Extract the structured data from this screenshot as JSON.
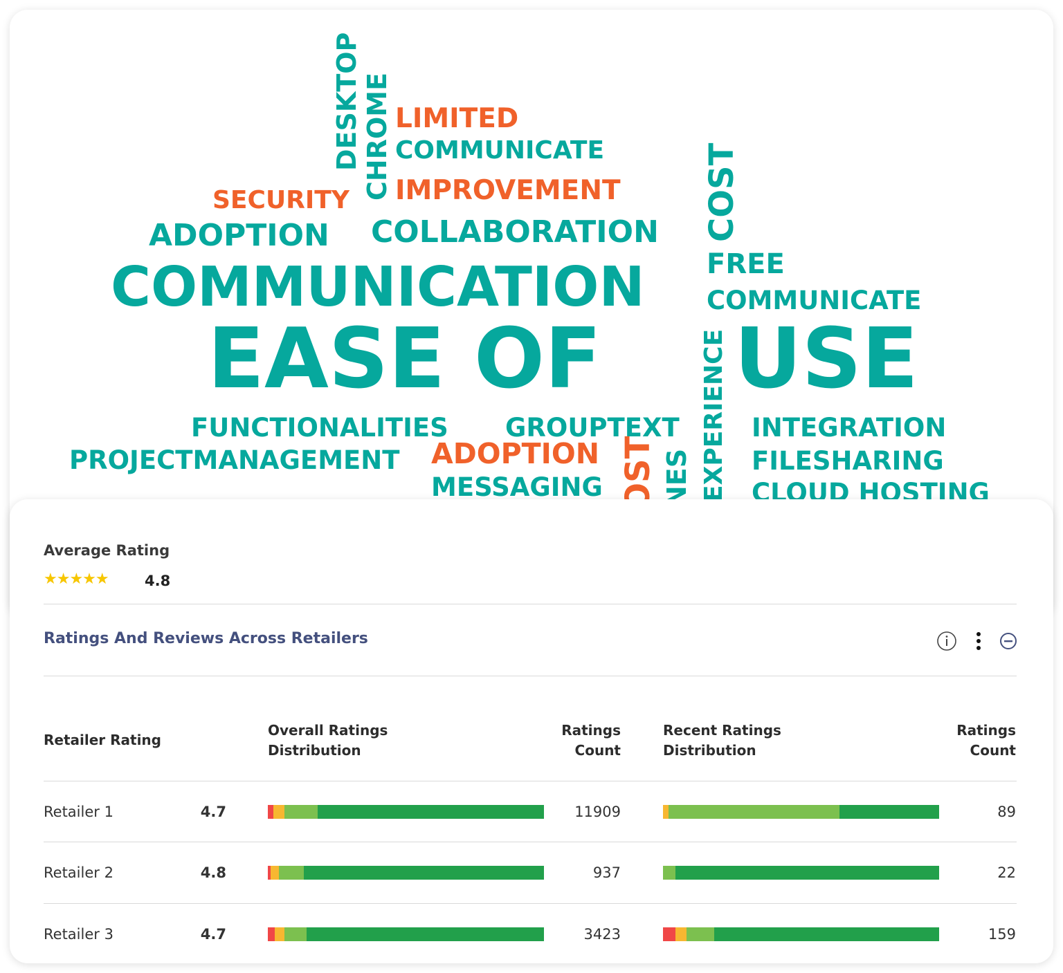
{
  "word_cloud": {
    "colors": {
      "teal": "#06a89d",
      "orange": "#f0612a"
    },
    "words": [
      {
        "text": "DESKTOP",
        "color": "teal"
      },
      {
        "text": "CHROME",
        "color": "teal"
      },
      {
        "text": "LIMITED",
        "color": "orange"
      },
      {
        "text": "COMMUNICATE",
        "color": "teal"
      },
      {
        "text": "SECURITY",
        "color": "orange"
      },
      {
        "text": "IMPROVEMENT",
        "color": "orange"
      },
      {
        "text": "COST",
        "color": "teal"
      },
      {
        "text": "ADOPTION",
        "color": "teal"
      },
      {
        "text": "COLLABORATION",
        "color": "teal"
      },
      {
        "text": "FREE",
        "color": "teal"
      },
      {
        "text": "COMMUNICATION",
        "color": "teal"
      },
      {
        "text": "COMMUNICATE",
        "color": "teal"
      },
      {
        "text": "EASE OF",
        "color": "teal"
      },
      {
        "text": "USE",
        "color": "teal"
      },
      {
        "text": "EXPERIENCE",
        "color": "teal"
      },
      {
        "text": "FUNCTIONALITIES",
        "color": "teal"
      },
      {
        "text": "GROUPTEXT",
        "color": "teal"
      },
      {
        "text": "INTEGRATION",
        "color": "teal"
      },
      {
        "text": "PROJECTMANAGEMENT",
        "color": "teal"
      },
      {
        "text": "ADOPTION",
        "color": "orange"
      },
      {
        "text": "FILESHARING",
        "color": "teal"
      },
      {
        "text": "MESSAGING",
        "color": "teal"
      },
      {
        "text": "COST",
        "color": "orange"
      },
      {
        "text": "NES",
        "color": "teal"
      },
      {
        "text": "CLOUD HOSTING",
        "color": "teal"
      }
    ]
  },
  "average": {
    "label": "Average Rating",
    "value": "4.8",
    "stars": "★★★★★"
  },
  "section": {
    "title": "Ratings And Reviews Across Retailers",
    "icons": [
      "info-icon",
      "more-vertical-icon",
      "collapse-icon"
    ]
  },
  "table": {
    "headers": {
      "retailer": "Retailer Rating",
      "overall_1": "Overall Ratings",
      "overall_2": "Distribution",
      "count_1": "Ratings",
      "count_2": "Count",
      "recent_1": "Recent Ratings",
      "recent_2": "Distribution",
      "rcount_1": "Ratings",
      "rcount_2": "Count"
    },
    "distribution_colors": [
      "#f04747",
      "#f7b731",
      "#7cc04f",
      "#22a04b"
    ],
    "rows": [
      {
        "name": "Retailer 1",
        "rating": "4.7",
        "count": "11909",
        "recent_count": "89",
        "overall": [
          2,
          4,
          12,
          82
        ],
        "recent": [
          0,
          2,
          62,
          36
        ]
      },
      {
        "name": "Retailer 2",
        "rating": "4.8",
        "count": "937",
        "recent_count": "22",
        "overall": [
          1,
          3,
          9,
          87
        ],
        "recent": [
          0,
          0,
          4.5,
          95.5
        ]
      },
      {
        "name": "Retailer 3",
        "rating": "4.7",
        "count": "3423",
        "recent_count": "159",
        "overall": [
          2.5,
          3.5,
          8,
          86
        ],
        "recent": [
          4.5,
          4,
          10,
          81.5
        ]
      }
    ]
  }
}
